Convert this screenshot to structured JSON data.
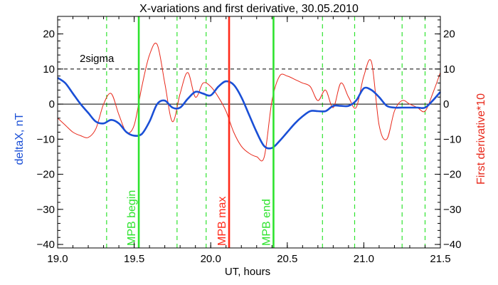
{
  "chart_data": {
    "type": "line",
    "title": "X-variations and first derivative, 30.05.2010",
    "xlabel": "UT, hours",
    "ylabel_left": "deltaX, nT",
    "ylabel_right": "First derivative*10",
    "xlim": [
      19.0,
      21.5
    ],
    "ylim": [
      -41,
      25
    ],
    "x_ticks": [
      19.0,
      19.5,
      20.0,
      20.5,
      21.0,
      21.5
    ],
    "x_tick_labels": [
      "19.0",
      "19.5",
      "20.0",
      "20.5",
      "21.0",
      "21.5"
    ],
    "y_ticks": [
      20,
      10,
      0,
      -10,
      -20,
      -30,
      -40
    ],
    "y_tick_labels": [
      "20",
      "10",
      "0",
      "−10",
      "−20",
      "−30",
      "−40"
    ],
    "threshold": {
      "label": "2sigma",
      "value": 10
    },
    "zero_line": 0,
    "colors": {
      "deltaX": "#1a4fd6",
      "derivative": "#e8281a",
      "mpb_edges": "#2ee32e",
      "mpb_max": "#ff2a1a",
      "minima_guides": "#2ee32e"
    },
    "series": [
      {
        "name": "deltaX, nT",
        "axis": "left",
        "color": "#1a4fd6",
        "x": [
          19.0,
          19.05,
          19.1,
          19.15,
          19.2,
          19.25,
          19.3,
          19.35,
          19.4,
          19.45,
          19.5,
          19.55,
          19.6,
          19.65,
          19.7,
          19.75,
          19.8,
          19.85,
          19.9,
          19.95,
          20.0,
          20.05,
          20.1,
          20.15,
          20.2,
          20.25,
          20.3,
          20.35,
          20.4,
          20.45,
          20.5,
          20.55,
          20.6,
          20.65,
          20.7,
          20.75,
          20.8,
          20.85,
          20.9,
          20.95,
          21.0,
          21.05,
          21.1,
          21.15,
          21.2,
          21.25,
          21.3,
          21.35,
          21.4,
          21.45,
          21.5
        ],
        "y": [
          7.5,
          6.0,
          3.0,
          0.0,
          -2.5,
          -5.0,
          -5.5,
          -4.5,
          -5.5,
          -8.0,
          -9.0,
          -8.5,
          -5.0,
          0.0,
          1.0,
          -1.0,
          -1.0,
          1.5,
          3.5,
          3.0,
          2.5,
          5.0,
          6.5,
          5.5,
          2.0,
          -3.0,
          -8.0,
          -12.0,
          -12.5,
          -10.5,
          -8.0,
          -5.5,
          -3.5,
          -2.0,
          -2.0,
          -2.0,
          -0.5,
          -0.5,
          -0.5,
          1.0,
          4.5,
          4.0,
          2.0,
          -0.5,
          -1.0,
          -1.0,
          -1.0,
          -1.0,
          -1.0,
          1.0,
          3.5
        ]
      },
      {
        "name": "First derivative*10",
        "axis": "right",
        "color": "#e8281a",
        "x": [
          19.0,
          19.05,
          19.1,
          19.15,
          19.2,
          19.25,
          19.3,
          19.35,
          19.4,
          19.45,
          19.5,
          19.55,
          19.6,
          19.65,
          19.7,
          19.75,
          19.8,
          19.85,
          19.9,
          19.95,
          20.0,
          20.05,
          20.1,
          20.15,
          20.2,
          20.25,
          20.3,
          20.35,
          20.4,
          20.45,
          20.5,
          20.55,
          20.6,
          20.65,
          20.7,
          20.75,
          20.8,
          20.85,
          20.9,
          20.95,
          21.0,
          21.05,
          21.1,
          21.15,
          21.2,
          21.25,
          21.3,
          21.35,
          21.4,
          21.45,
          21.5
        ],
        "y": [
          -4,
          -6,
          -8,
          -9,
          -9.5,
          -7,
          0,
          3,
          -3,
          -8,
          -6,
          5,
          14,
          17,
          6,
          -5,
          3,
          9,
          2,
          6,
          5,
          2,
          -2,
          -8,
          -12,
          -14,
          -15,
          -15,
          1,
          8,
          8,
          7,
          6,
          5,
          1,
          4,
          -1,
          6,
          2,
          -1,
          8,
          12,
          -6,
          -10,
          -2,
          1,
          0,
          -1,
          -2,
          3,
          9
        ]
      }
    ],
    "vertical_markers": [
      {
        "label": "MPB begin",
        "x": 19.53,
        "color": "#2ee32e"
      },
      {
        "label": "MPB max",
        "x": 20.12,
        "color": "#ff2a1a"
      },
      {
        "label": "MPB end",
        "x": 20.41,
        "color": "#2ee32e"
      }
    ],
    "dashed_guides_x": [
      19.32,
      19.78,
      19.97,
      20.73,
      20.94,
      21.25,
      21.4
    ]
  }
}
